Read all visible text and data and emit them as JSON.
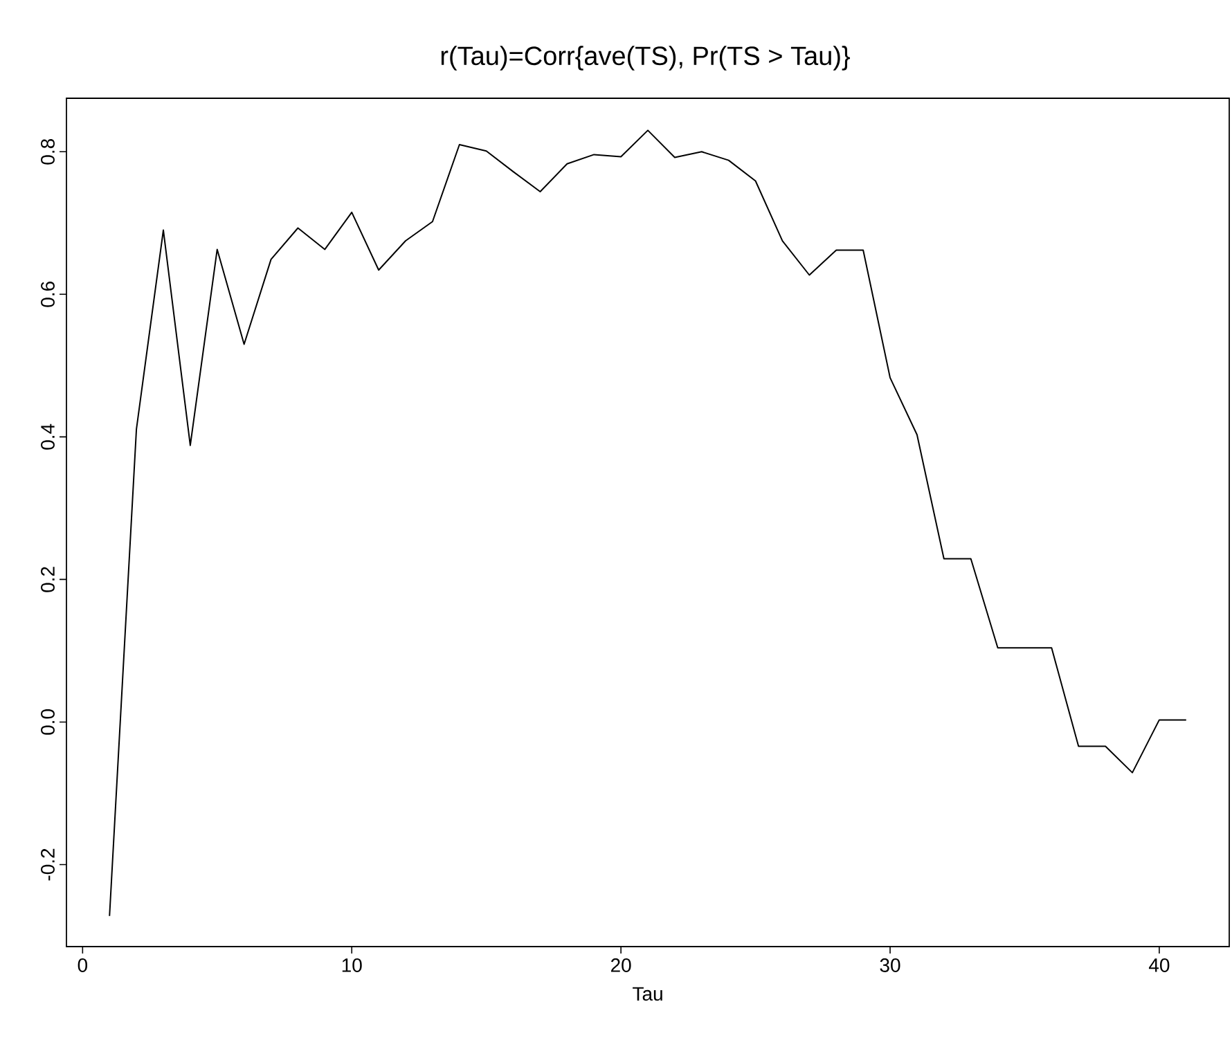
{
  "chart_data": {
    "type": "line",
    "title": "r(Tau)=Corr{ave(TS), Pr(TS > Tau)}",
    "xlabel": "Tau",
    "x": [
      1,
      2,
      3,
      4,
      5,
      6,
      7,
      8,
      9,
      10,
      11,
      12,
      13,
      14,
      15,
      16,
      17,
      18,
      19,
      20,
      21,
      22,
      23,
      24,
      25,
      26,
      27,
      28,
      29,
      30,
      31,
      32,
      33,
      34,
      35,
      36,
      37,
      38,
      39,
      40,
      41
    ],
    "series": [
      {
        "color": "#000000",
        "values": [
          -0.272,
          0.411,
          0.69,
          0.388,
          0.663,
          0.53,
          0.649,
          0.693,
          0.663,
          0.715,
          0.634,
          0.675,
          0.702,
          0.81,
          0.801,
          0.772,
          0.744,
          0.783,
          0.796,
          0.793,
          0.83,
          0.792,
          0.8,
          0.788,
          0.759,
          0.675,
          0.627,
          0.662,
          0.662,
          0.483,
          0.403,
          0.229,
          0.229,
          0.104,
          0.104,
          0.104,
          -0.034,
          -0.034,
          -0.071,
          0.003,
          0.003
        ]
      }
    ],
    "xlim": [
      -0.6,
      42.6
    ],
    "ylim": [
      -0.315,
      0.875
    ],
    "xticks": [
      0,
      10,
      20,
      30,
      40
    ],
    "yticks": [
      {
        "value": -0.2,
        "label": "-0.2"
      },
      {
        "value": 0,
        "label": "0.0"
      },
      {
        "value": 0.2,
        "label": "0.2"
      },
      {
        "value": 0.4,
        "label": "0.4"
      },
      {
        "value": 0.6,
        "label": "0.6"
      },
      {
        "value": 0.8,
        "label": "0.8"
      }
    ],
    "grid": false,
    "marker": "none",
    "line_style": "solid"
  }
}
